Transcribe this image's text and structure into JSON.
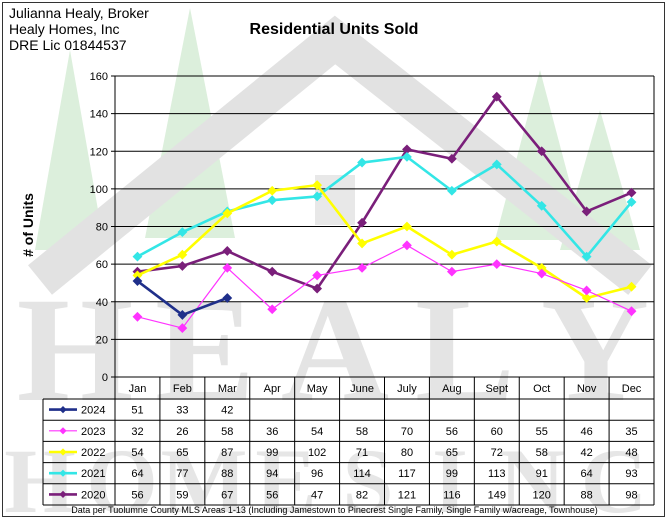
{
  "header": {
    "broker_name": "Julianna Healy, Broker",
    "company": "Healy Homes, Inc",
    "license": "DRE Lic 01844537"
  },
  "footnote": "Data per Tuolumne County MLS Areas 1-13 (Including Jamestown to Pinecrest Single Family, Single Family w/acreage, Townhouse)",
  "watermark": {
    "letters_row1": [
      "H",
      "E",
      "A",
      "L",
      "Y"
    ],
    "letters_row2": [
      "H",
      "O",
      "M",
      "E",
      "S",
      "I",
      "N",
      "C"
    ]
  },
  "chart_data": {
    "type": "line",
    "title": "Residential Units Sold",
    "ylabel": "# of Units",
    "xlabel": "",
    "ylim": [
      0,
      160
    ],
    "yticks": [
      0,
      20,
      40,
      60,
      80,
      100,
      120,
      140,
      160
    ],
    "grid": true,
    "categories": [
      "Jan",
      "Feb",
      "Mar",
      "Apr",
      "May",
      "June",
      "July",
      "Aug",
      "Sept",
      "Oct",
      "Nov",
      "Dec"
    ],
    "legend": "data table below chart",
    "series": [
      {
        "name": "2024",
        "color": "#1f2f8a",
        "values": [
          51,
          33,
          42,
          null,
          null,
          null,
          null,
          null,
          null,
          null,
          null,
          null
        ]
      },
      {
        "name": "2023",
        "color": "#ff33ff",
        "values": [
          32,
          26,
          58,
          36,
          54,
          58,
          70,
          56,
          60,
          55,
          46,
          35
        ]
      },
      {
        "name": "2022",
        "color": "#ffff00",
        "values": [
          54,
          65,
          87,
          99,
          102,
          71,
          80,
          65,
          72,
          58,
          42,
          48
        ]
      },
      {
        "name": "2021",
        "color": "#33e6e6",
        "values": [
          64,
          77,
          88,
          94,
          96,
          114,
          117,
          99,
          113,
          91,
          64,
          93
        ]
      },
      {
        "name": "2020",
        "color": "#7a1f7a",
        "values": [
          56,
          59,
          67,
          56,
          47,
          82,
          121,
          116,
          149,
          120,
          88,
          98
        ]
      }
    ]
  }
}
